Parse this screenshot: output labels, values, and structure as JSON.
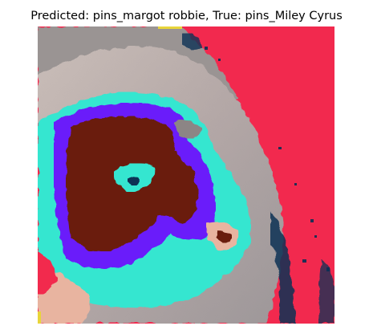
{
  "figure": {
    "title": "Predicted: pins_margot robbie, True: pins_Miley Cyrus"
  },
  "image": {
    "description_icon": "processed-face-image",
    "colors": {
      "background_red": "#f2294e",
      "skin_gray": "#b8aba8",
      "hair_gray": "#8f8f8f",
      "cyan": "#35e6d0",
      "blue_purple": "#6a1dfa",
      "dark_brown": "#6b1a0e",
      "navy": "#0a3055",
      "peach": "#e8b4a0"
    }
  }
}
